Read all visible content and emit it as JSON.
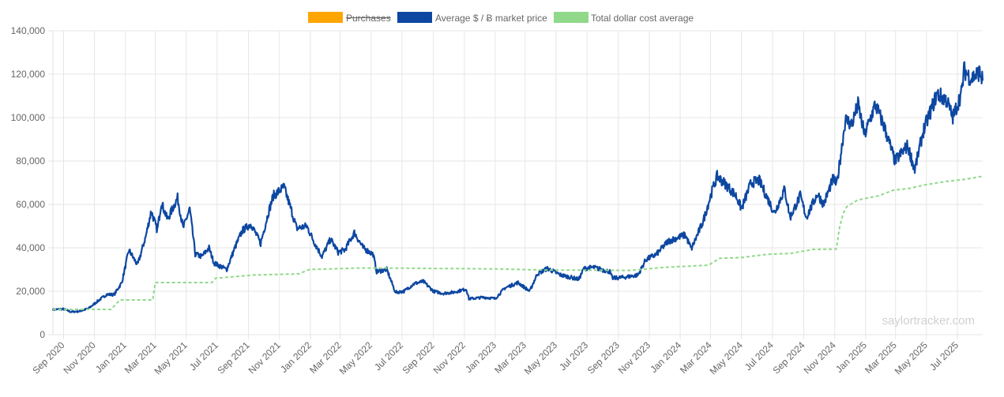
{
  "watermark": "saylortracker.com",
  "chart_data": {
    "type": "line",
    "y_ticks": [
      "0",
      "20,000",
      "40,000",
      "60,000",
      "80,000",
      "100,000",
      "120,000",
      "140,000"
    ],
    "ylim": [
      0,
      140000
    ],
    "x_ticks": [
      "Sep 2020",
      "Nov 2020",
      "Jan 2021",
      "Mar 2021",
      "May 2021",
      "Jul 2021",
      "Sep 2021",
      "Nov 2021",
      "Jan 2022",
      "Mar 2022",
      "May 2022",
      "Jul 2022",
      "Sep 2022",
      "Nov 2022",
      "Jan 2023",
      "Mar 2023",
      "May 2023",
      "Jul 2023",
      "Sep 2023",
      "Nov 2023",
      "Jan 2024",
      "Mar 2024",
      "May 2024",
      "Jul 2024",
      "Sep 2024",
      "Nov 2024",
      "Jan 2025",
      "Mar 2025",
      "May 2025",
      "Jul 2025"
    ],
    "x_tick_dates": [
      "2020-09-01",
      "2020-11-01",
      "2021-01-01",
      "2021-03-01",
      "2021-05-01",
      "2021-07-01",
      "2021-09-01",
      "2021-11-01",
      "2022-01-01",
      "2022-03-01",
      "2022-05-01",
      "2022-07-01",
      "2022-09-01",
      "2022-11-01",
      "2023-01-01",
      "2023-03-01",
      "2023-05-01",
      "2023-07-01",
      "2023-09-01",
      "2023-11-01",
      "2024-01-01",
      "2024-03-01",
      "2024-05-01",
      "2024-07-01",
      "2024-09-01",
      "2024-11-01",
      "2025-01-01",
      "2025-03-01",
      "2025-05-01",
      "2025-07-01"
    ],
    "xlim": [
      "2020-08-11",
      "2025-08-20"
    ],
    "grid": true,
    "legend_position": "top-center",
    "series": [
      {
        "name": "Purchases",
        "color": "#ffa500",
        "hidden": true,
        "style": "bar",
        "values": []
      },
      {
        "name": "Average $ / Ƀ market price",
        "color": "#0d47a1",
        "style": "solid",
        "points": [
          [
            "2020-08-11",
            11500
          ],
          [
            "2020-09-01",
            11800
          ],
          [
            "2020-09-15",
            10500
          ],
          [
            "2020-10-01",
            10700
          ],
          [
            "2020-10-20",
            12000
          ],
          [
            "2020-11-05",
            15000
          ],
          [
            "2020-11-25",
            18500
          ],
          [
            "2020-12-10",
            18500
          ],
          [
            "2020-12-25",
            24000
          ],
          [
            "2021-01-08",
            39000
          ],
          [
            "2021-01-25",
            32000
          ],
          [
            "2021-02-10",
            45000
          ],
          [
            "2021-02-21",
            57000
          ],
          [
            "2021-03-05",
            48000
          ],
          [
            "2021-03-13",
            61000
          ],
          [
            "2021-03-25",
            53000
          ],
          [
            "2021-04-14",
            63000
          ],
          [
            "2021-04-25",
            49000
          ],
          [
            "2021-05-08",
            58000
          ],
          [
            "2021-05-19",
            37000
          ],
          [
            "2021-06-01",
            36000
          ],
          [
            "2021-06-15",
            40000
          ],
          [
            "2021-06-25",
            33000
          ],
          [
            "2021-07-20",
            30000
          ],
          [
            "2021-08-05",
            40000
          ],
          [
            "2021-08-20",
            48000
          ],
          [
            "2021-09-06",
            51000
          ],
          [
            "2021-09-25",
            42000
          ],
          [
            "2021-10-10",
            56000
          ],
          [
            "2021-10-20",
            64000
          ],
          [
            "2021-11-10",
            68000
          ],
          [
            "2021-11-25",
            57000
          ],
          [
            "2021-12-05",
            49000
          ],
          [
            "2021-12-25",
            50000
          ],
          [
            "2022-01-10",
            42000
          ],
          [
            "2022-01-24",
            36000
          ],
          [
            "2022-02-10",
            44000
          ],
          [
            "2022-02-25",
            38000
          ],
          [
            "2022-03-10",
            39000
          ],
          [
            "2022-03-29",
            47000
          ],
          [
            "2022-04-15",
            40000
          ],
          [
            "2022-05-05",
            37000
          ],
          [
            "2022-05-12",
            29000
          ],
          [
            "2022-06-01",
            30000
          ],
          [
            "2022-06-18",
            19500
          ],
          [
            "2022-07-05",
            20000
          ],
          [
            "2022-07-25",
            23500
          ],
          [
            "2022-08-12",
            24500
          ],
          [
            "2022-09-01",
            20000
          ],
          [
            "2022-09-20",
            19000
          ],
          [
            "2022-10-10",
            19500
          ],
          [
            "2022-11-05",
            21000
          ],
          [
            "2022-11-10",
            16500
          ],
          [
            "2022-12-10",
            17200
          ],
          [
            "2023-01-01",
            16600
          ],
          [
            "2023-01-20",
            21500
          ],
          [
            "2023-02-15",
            24000
          ],
          [
            "2023-03-10",
            20000
          ],
          [
            "2023-03-25",
            28000
          ],
          [
            "2023-04-14",
            30500
          ],
          [
            "2023-05-10",
            27500
          ],
          [
            "2023-06-15",
            25500
          ],
          [
            "2023-06-25",
            30500
          ],
          [
            "2023-07-14",
            31000
          ],
          [
            "2023-08-15",
            29000
          ],
          [
            "2023-08-20",
            26000
          ],
          [
            "2023-09-15",
            26500
          ],
          [
            "2023-10-10",
            27500
          ],
          [
            "2023-10-25",
            34500
          ],
          [
            "2023-11-15",
            37000
          ],
          [
            "2023-12-08",
            43000
          ],
          [
            "2024-01-11",
            46000
          ],
          [
            "2024-01-23",
            39500
          ],
          [
            "2024-02-15",
            52000
          ],
          [
            "2024-03-05",
            67000
          ],
          [
            "2024-03-14",
            73000
          ],
          [
            "2024-04-01",
            69000
          ],
          [
            "2024-04-20",
            64000
          ],
          [
            "2024-05-01",
            58000
          ],
          [
            "2024-05-20",
            70000
          ],
          [
            "2024-06-05",
            71000
          ],
          [
            "2024-06-25",
            61000
          ],
          [
            "2024-07-05",
            56000
          ],
          [
            "2024-07-25",
            67000
          ],
          [
            "2024-08-05",
            54000
          ],
          [
            "2024-08-25",
            64000
          ],
          [
            "2024-09-06",
            54000
          ],
          [
            "2024-09-28",
            65000
          ],
          [
            "2024-10-10",
            60000
          ],
          [
            "2024-10-29",
            72000
          ],
          [
            "2024-11-05",
            69000
          ],
          [
            "2024-11-22",
            99000
          ],
          [
            "2024-12-05",
            97000
          ],
          [
            "2024-12-17",
            106000
          ],
          [
            "2024-12-30",
            92000
          ],
          [
            "2025-01-20",
            106000
          ],
          [
            "2025-02-05",
            97000
          ],
          [
            "2025-02-28",
            80000
          ],
          [
            "2025-03-25",
            87000
          ],
          [
            "2025-04-08",
            76000
          ],
          [
            "2025-04-25",
            94000
          ],
          [
            "2025-05-22",
            111000
          ],
          [
            "2025-06-10",
            108000
          ],
          [
            "2025-06-22",
            100000
          ],
          [
            "2025-07-10",
            112000
          ],
          [
            "2025-07-14",
            122000
          ],
          [
            "2025-07-28",
            118000
          ],
          [
            "2025-08-14",
            121000
          ],
          [
            "2025-08-20",
            117000
          ]
        ]
      },
      {
        "name": "Total dollar cost average",
        "color": "#90d98a",
        "style": "dashed",
        "points": [
          [
            "2020-08-11",
            11600
          ],
          [
            "2020-12-04",
            11650
          ],
          [
            "2020-12-21",
            16000
          ],
          [
            "2021-02-24",
            16000
          ],
          [
            "2021-03-01",
            24000
          ],
          [
            "2021-06-21",
            24000
          ],
          [
            "2021-06-28",
            26000
          ],
          [
            "2021-09-13",
            27500
          ],
          [
            "2021-12-09",
            28000
          ],
          [
            "2021-12-30",
            30000
          ],
          [
            "2022-04-05",
            30700
          ],
          [
            "2022-05-20",
            30700
          ],
          [
            "2022-12-28",
            30300
          ],
          [
            "2023-04-05",
            29800
          ],
          [
            "2023-09-25",
            29600
          ],
          [
            "2023-11-30",
            31000
          ],
          [
            "2024-02-26",
            32000
          ],
          [
            "2024-03-19",
            35200
          ],
          [
            "2024-04-30",
            35500
          ],
          [
            "2024-06-20",
            37000
          ],
          [
            "2024-08-05",
            37400
          ],
          [
            "2024-09-20",
            39300
          ],
          [
            "2024-11-04",
            39400
          ],
          [
            "2024-11-11",
            50000
          ],
          [
            "2024-11-18",
            56000
          ],
          [
            "2024-11-25",
            59000
          ],
          [
            "2024-12-16",
            62000
          ],
          [
            "2025-01-27",
            64000
          ],
          [
            "2025-02-24",
            66500
          ],
          [
            "2025-03-31",
            67500
          ],
          [
            "2025-04-28",
            69000
          ],
          [
            "2025-06-09",
            70600
          ],
          [
            "2025-07-14",
            71500
          ],
          [
            "2025-08-20",
            73000
          ]
        ]
      }
    ]
  }
}
